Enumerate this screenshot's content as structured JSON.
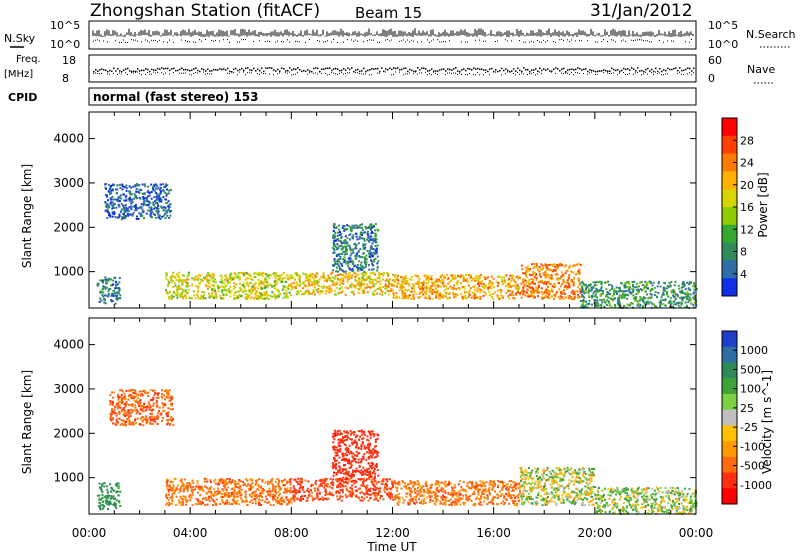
{
  "header": {
    "station": "Zhongshan Station (fitACF)",
    "beam": "Beam 15",
    "date": "31/Jan/2012"
  },
  "strips": {
    "nsky_label": "N.Sky",
    "nsky_top": "10^5",
    "nsky_bottom": "10^0",
    "nsearch_label": "N.Search",
    "nsearch_top": "10^5",
    "nsearch_bottom": "10^0",
    "freq_label_1": "Freq.",
    "freq_label_2": "[MHz]",
    "freq_top": "18",
    "freq_bottom": "8",
    "nave_label": "Nave",
    "nave_top": "60",
    "nave_bottom": "0",
    "cpid_label": "CPID",
    "cpid_value": "normal (fast stereo) 153"
  },
  "axes": {
    "ylabel": "Slant Range [km]",
    "yticks": [
      "4000",
      "3000",
      "2000",
      "1000"
    ],
    "xticks": [
      "00:00",
      "04:00",
      "08:00",
      "12:00",
      "16:00",
      "20:00",
      "00:00"
    ],
    "xlabel": "Time UT"
  },
  "power_colorbar": {
    "label": "Power [dB]",
    "ticks": [
      "28",
      "24",
      "20",
      "16",
      "12",
      "8",
      "4"
    ],
    "colors": [
      "#ff0000",
      "#ff4000",
      "#ff7a00",
      "#ffb000",
      "#d8d400",
      "#8ccc00",
      "#36a830",
      "#2f8c5a",
      "#2e6ea8",
      "#1030e8"
    ]
  },
  "velocity_colorbar": {
    "label": "Velocity [m s^-1]",
    "ticks": [
      "1000",
      "500",
      "100",
      "25",
      "-25",
      "-100",
      "-500",
      "-1000"
    ],
    "colors": [
      "#1f3ec8",
      "#2d6ea6",
      "#2f8a5a",
      "#3ea43a",
      "#7dd040",
      "#c0c0c0",
      "#ffc000",
      "#ff9a00",
      "#ff6a10",
      "#ff3010",
      "#ff0000"
    ]
  },
  "chart_data": {
    "type": "heatmap",
    "x_range_hours": [
      0,
      24
    ],
    "y_range_km": [
      180,
      4600
    ],
    "panels": [
      {
        "name": "Power",
        "bands": [
          {
            "t": [
              0.3,
              1.2
            ],
            "r": [
              300,
              900
            ],
            "value_db": 8
          },
          {
            "t": [
              0.6,
              3.2
            ],
            "r": [
              2200,
              3000
            ],
            "value_db": 6
          },
          {
            "t": [
              3.0,
              8.0
            ],
            "r": [
              400,
              1000
            ],
            "value_db": 18
          },
          {
            "t": [
              8.0,
              12.0
            ],
            "r": [
              500,
              1000
            ],
            "value_db": 20
          },
          {
            "t": [
              9.6,
              11.4
            ],
            "r": [
              1000,
              2100
            ],
            "value_db": 8
          },
          {
            "t": [
              12.0,
              17.0
            ],
            "r": [
              400,
              950
            ],
            "value_db": 22
          },
          {
            "t": [
              17.0,
              19.4
            ],
            "r": [
              400,
              1200
            ],
            "value_db": 24
          },
          {
            "t": [
              19.4,
              24.0
            ],
            "r": [
              200,
              800
            ],
            "value_db": 10
          }
        ]
      },
      {
        "name": "Velocity",
        "bands": [
          {
            "t": [
              0.3,
              1.2
            ],
            "r": [
              300,
              900
            ],
            "value_ms": 300
          },
          {
            "t": [
              0.8,
              3.3
            ],
            "r": [
              2200,
              3000
            ],
            "value_ms": -200
          },
          {
            "t": [
              3.0,
              8.0
            ],
            "r": [
              400,
              1000
            ],
            "value_ms": -150
          },
          {
            "t": [
              8.0,
              12.0
            ],
            "r": [
              500,
              1000
            ],
            "value_ms": -300
          },
          {
            "t": [
              9.6,
              11.4
            ],
            "r": [
              1000,
              2100
            ],
            "value_ms": -400
          },
          {
            "t": [
              12.0,
              17.0
            ],
            "r": [
              400,
              950
            ],
            "value_ms": -150
          },
          {
            "t": [
              17.0,
              20.0
            ],
            "r": [
              400,
              1250
            ],
            "value_ms": 60
          },
          {
            "t": [
              20.0,
              24.0
            ],
            "r": [
              200,
              800
            ],
            "value_ms": 80
          }
        ]
      }
    ]
  }
}
